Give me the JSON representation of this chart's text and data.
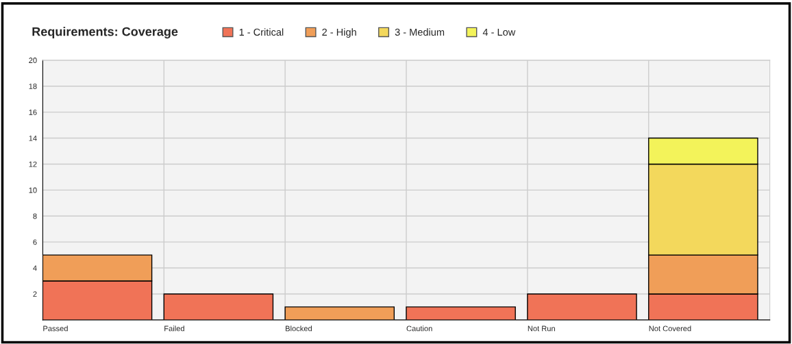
{
  "chart_data": {
    "type": "bar",
    "title": "Requirements: Coverage",
    "stacked": true,
    "legend": "top",
    "grid": true,
    "categories": [
      "Passed",
      "Failed",
      "Blocked",
      "Caution",
      "Not Run",
      "Not Covered"
    ],
    "series": [
      {
        "name": "1 - Critical",
        "color": "#f07357",
        "values": [
          3,
          2,
          0,
          1,
          2,
          2
        ]
      },
      {
        "name": "2 - High",
        "color": "#f09e58",
        "values": [
          2,
          0,
          1,
          0,
          0,
          3
        ]
      },
      {
        "name": "3 - Medium",
        "color": "#f3d85c",
        "values": [
          0,
          0,
          0,
          0,
          0,
          7
        ]
      },
      {
        "name": "4 - Low",
        "color": "#f3f35a",
        "values": [
          0,
          0,
          0,
          0,
          0,
          2
        ]
      }
    ],
    "ylim": [
      0,
      20
    ],
    "yticks": [
      {
        "value": 0,
        "label": null
      },
      2,
      4,
      6,
      8,
      10,
      12,
      14,
      16,
      18,
      20
    ]
  }
}
